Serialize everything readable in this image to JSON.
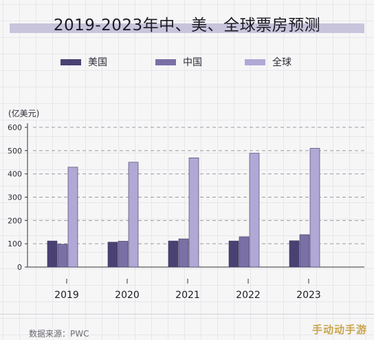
{
  "title": "2019-2023年中、美、全球票房预测",
  "unit_label": "(亿美元)",
  "source": "数据来源：PWC",
  "watermark": "手动动手游",
  "colors": {
    "us": "#4a4173",
    "china": "#7b70a6",
    "global": "#b1a8d6",
    "title_band": "#c8c4dc"
  },
  "legend": [
    {
      "label": "美国",
      "color": "#4a4173"
    },
    {
      "label": "中国",
      "color": "#7b70a6"
    },
    {
      "label": "全球",
      "color": "#b1a8d6"
    }
  ],
  "chart_data": {
    "type": "bar",
    "categories": [
      "2019",
      "2020",
      "2021",
      "2022",
      "2023"
    ],
    "series": [
      {
        "name": "美国",
        "values": [
          112,
          107,
          112,
          112,
          113
        ]
      },
      {
        "name": "中国",
        "values": [
          98,
          111,
          121,
          130,
          139
        ]
      },
      {
        "name": "全球",
        "values": [
          429,
          450,
          469,
          489,
          510
        ]
      }
    ],
    "ylabel": "(亿美元)",
    "yticks": [
      0,
      100,
      200,
      300,
      400,
      500,
      600
    ],
    "ylim": [
      0,
      600
    ],
    "grid": true,
    "legend_position": "top"
  }
}
